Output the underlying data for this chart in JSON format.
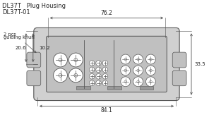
{
  "title_line1": "DL37T   Plug Housing",
  "title_line2": "DL37T-01",
  "dim_76_2": "76.2",
  "dim_84_1": "84.1",
  "dim_20_6": "20.6",
  "dim_10_2": "10.2",
  "dim_33_5": "33.5",
  "label_guiding_knurl": "guiding knurl",
  "label_2pcs": "2 pcs",
  "bg_color": "#ffffff",
  "line_color": "#555555",
  "body_fill": "#d0d0d0",
  "housing_fill": "#c0c0c0",
  "text_color": "#222222"
}
